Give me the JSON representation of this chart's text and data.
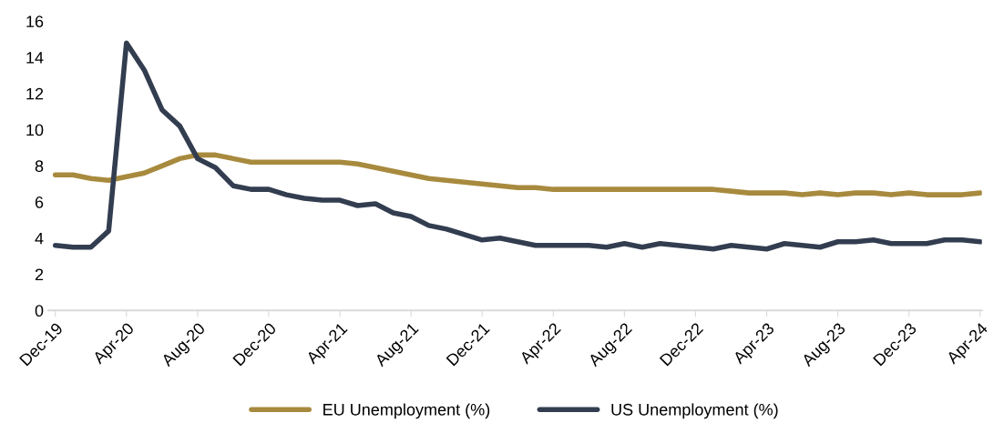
{
  "chart_data": {
    "type": "line",
    "categories": [
      "Dec-19",
      null,
      null,
      null,
      "Apr-20",
      null,
      null,
      null,
      "Aug-20",
      null,
      null,
      null,
      "Dec-20",
      null,
      null,
      null,
      "Apr-21",
      null,
      null,
      null,
      "Aug-21",
      null,
      null,
      null,
      "Dec-21",
      null,
      null,
      null,
      "Apr-22",
      null,
      null,
      null,
      "Aug-22",
      null,
      null,
      null,
      "Dec-22",
      null,
      null,
      null,
      "Apr-23",
      null,
      null,
      null,
      "Aug-23",
      null,
      null,
      null,
      "Dec-23",
      null,
      null,
      null,
      "Apr-24"
    ],
    "series": [
      {
        "name": "EU Unemployment (%)",
        "color": "#a88a3e",
        "values": [
          7.5,
          7.5,
          7.3,
          7.2,
          7.4,
          7.6,
          8.0,
          8.4,
          8.6,
          8.6,
          8.4,
          8.2,
          8.2,
          8.2,
          8.2,
          8.2,
          8.2,
          8.1,
          7.9,
          7.7,
          7.5,
          7.3,
          7.2,
          7.1,
          7.0,
          6.9,
          6.8,
          6.8,
          6.7,
          6.7,
          6.7,
          6.7,
          6.7,
          6.7,
          6.7,
          6.7,
          6.7,
          6.7,
          6.6,
          6.5,
          6.5,
          6.5,
          6.4,
          6.5,
          6.4,
          6.5,
          6.5,
          6.4,
          6.5,
          6.4,
          6.4,
          6.4,
          6.5
        ]
      },
      {
        "name": "US Unemployment (%)",
        "color": "#333d50",
        "values": [
          3.6,
          3.5,
          3.5,
          4.4,
          14.8,
          13.3,
          11.1,
          10.2,
          8.4,
          7.9,
          6.9,
          6.7,
          6.7,
          6.4,
          6.2,
          6.1,
          6.1,
          5.8,
          5.9,
          5.4,
          5.2,
          4.7,
          4.5,
          4.2,
          3.9,
          4.0,
          3.8,
          3.6,
          3.6,
          3.6,
          3.6,
          3.5,
          3.7,
          3.5,
          3.7,
          3.6,
          3.5,
          3.4,
          3.6,
          3.5,
          3.4,
          3.7,
          3.6,
          3.5,
          3.8,
          3.8,
          3.9,
          3.7,
          3.7,
          3.7,
          3.9,
          3.9,
          3.8
        ]
      }
    ],
    "ylim": [
      0,
      16
    ],
    "yticks": [
      0,
      2,
      4,
      6,
      8,
      10,
      12,
      14,
      16
    ],
    "grid": false,
    "legend": "bottom",
    "marker": "none",
    "line_style": "solid"
  }
}
